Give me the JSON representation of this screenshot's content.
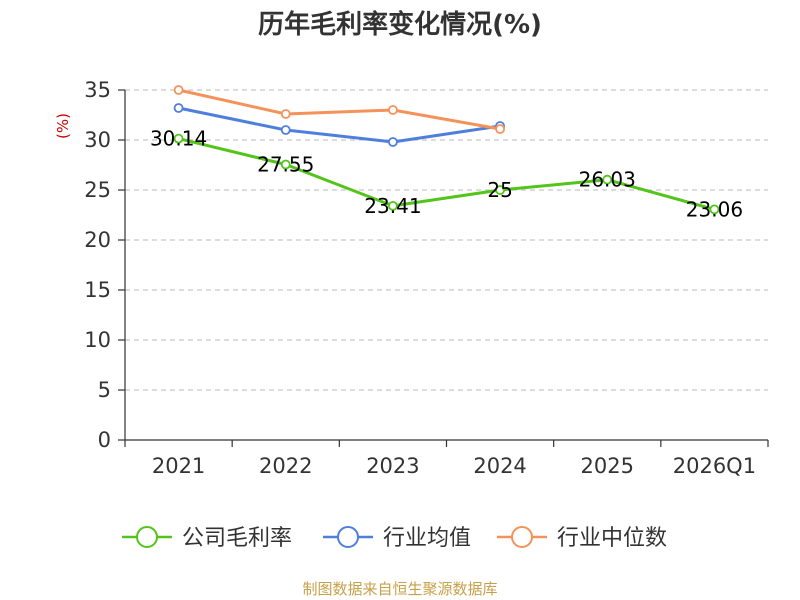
{
  "chart_data": {
    "type": "line",
    "title": "历年毛利率变化情况(%)",
    "ylabel": "(%)",
    "xlabel": "",
    "ylim": [
      0,
      35
    ],
    "yticks": [
      0,
      5,
      10,
      15,
      20,
      25,
      30,
      35
    ],
    "categories": [
      "2021",
      "2022",
      "2023",
      "2024",
      "2025",
      "2026Q1"
    ],
    "grid": "horizontal dashed",
    "legend_position": "bottom",
    "series": [
      {
        "name": "公司毛利率",
        "color": "#52c41a",
        "values": [
          30.14,
          27.55,
          23.41,
          25,
          26.03,
          23.06
        ],
        "labels": [
          "30.14",
          "27.55",
          "23.41",
          "25",
          "26.03",
          "23.06"
        ]
      },
      {
        "name": "行业均值",
        "color": "#4e7fdd",
        "values": [
          33.2,
          31.0,
          29.8,
          31.4,
          null,
          null
        ]
      },
      {
        "name": "行业中位数",
        "color": "#f5925a",
        "values": [
          35.0,
          32.6,
          33.0,
          31.1,
          null,
          null
        ]
      }
    ],
    "source": "制图数据来自恒生聚源数据库"
  }
}
